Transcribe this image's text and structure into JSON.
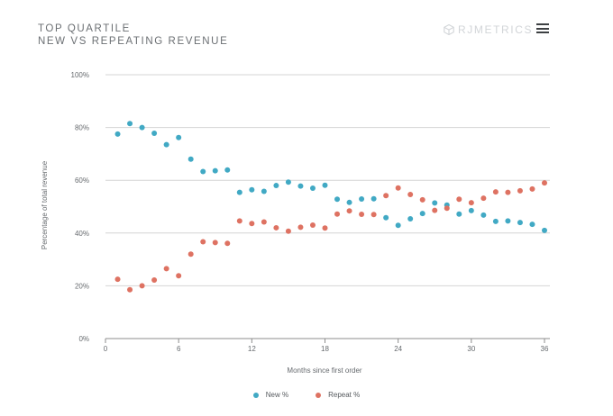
{
  "header": {
    "title_line1": "TOP QUARTILE",
    "title_line2": "NEW VS REPEATING REVENUE",
    "brand": "RJMETRICS"
  },
  "icons": {
    "brand_logo": "cube-icon",
    "menu": "hamburger-menu-icon"
  },
  "colors": {
    "new": "#41a9c4",
    "repeat": "#de7262",
    "grid": "#d4d4d4",
    "axis": "#8d8d8d"
  },
  "chart_data": {
    "type": "scatter",
    "xlabel": "Months since first order",
    "ylabel": "Percentage of total revenue",
    "xlim": [
      0,
      36
    ],
    "ylim": [
      0,
      100
    ],
    "xticks": [
      0,
      6,
      12,
      18,
      24,
      30,
      36
    ],
    "yticks": [
      0,
      20,
      40,
      60,
      80,
      100
    ],
    "ytick_labels": [
      "0%",
      "20%",
      "40%",
      "60%",
      "80%",
      "100%"
    ],
    "grid": "horizontal",
    "legend_position": "bottom-center",
    "x": [
      1,
      2,
      3,
      4,
      5,
      6,
      7,
      8,
      9,
      10,
      11,
      12,
      13,
      14,
      15,
      16,
      17,
      18,
      19,
      20,
      21,
      22,
      23,
      24,
      25,
      26,
      27,
      28,
      29,
      30,
      31,
      32,
      33,
      34,
      35,
      36
    ],
    "series": [
      {
        "name": "New %",
        "color": "#41a9c4",
        "values": [
          77.5,
          81.5,
          80.0,
          77.8,
          73.5,
          76.2,
          68.0,
          63.3,
          63.6,
          63.9,
          55.4,
          56.4,
          55.8,
          58.0,
          59.3,
          57.8,
          57.0,
          58.1,
          52.8,
          51.6,
          52.9,
          53.0,
          45.8,
          42.9,
          45.4,
          47.4,
          51.4,
          50.6,
          47.2,
          48.5,
          46.8,
          44.4,
          44.6,
          44.0,
          43.3,
          41.0
        ]
      },
      {
        "name": "Repeat %",
        "color": "#de7262",
        "values": [
          22.5,
          18.5,
          20.0,
          22.2,
          26.5,
          23.8,
          32.0,
          36.7,
          36.4,
          36.1,
          44.6,
          43.6,
          44.2,
          42.0,
          40.7,
          42.2,
          43.0,
          41.9,
          47.2,
          48.4,
          47.1,
          47.0,
          54.2,
          57.1,
          54.6,
          52.6,
          48.6,
          49.4,
          52.8,
          51.5,
          53.2,
          55.6,
          55.4,
          56.0,
          56.7,
          59.0
        ]
      }
    ]
  }
}
